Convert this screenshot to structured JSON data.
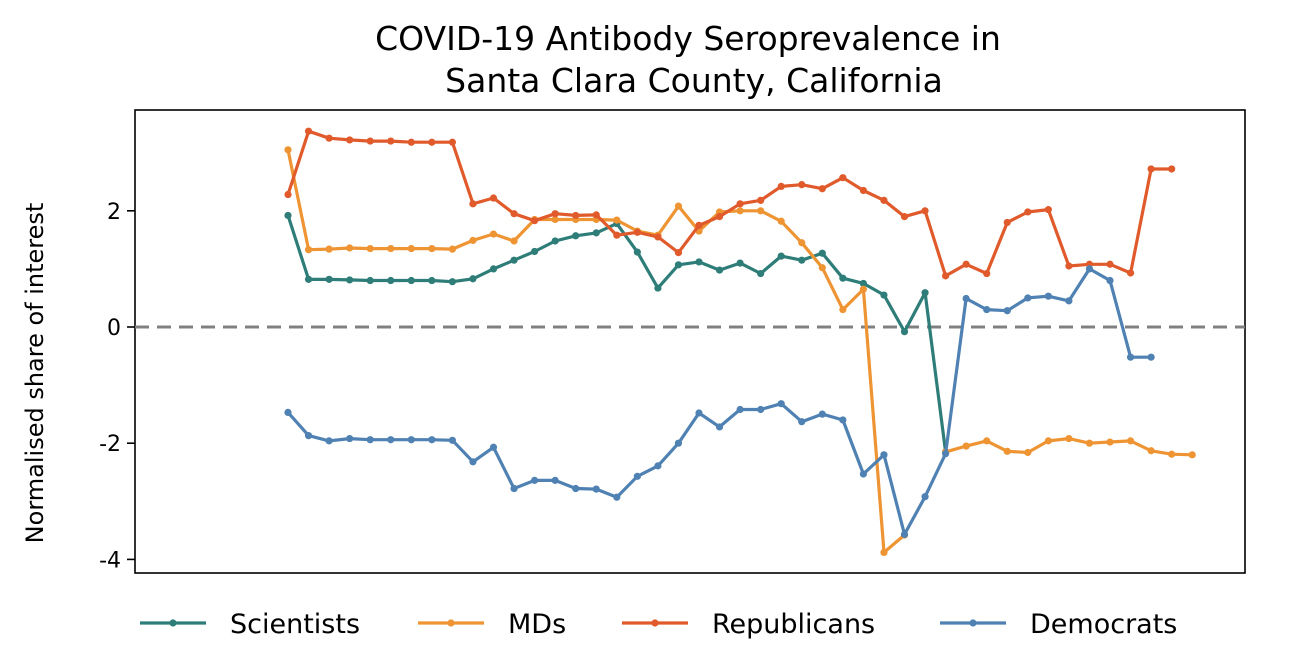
{
  "chart_data": {
    "type": "line",
    "title": [
      "COVID-19 Antibody Seroprevalence in",
      "Santa Clara County, California"
    ],
    "xlabel": "",
    "ylabel": "Normalised share of interest",
    "ylim": [
      -4.3,
      3.7
    ],
    "yticks": [
      2,
      0,
      -2,
      -4
    ],
    "ytick_labels": [
      "2",
      "0",
      "-2",
      "-4"
    ],
    "x": [
      0,
      1,
      2,
      3,
      4,
      5,
      6,
      7,
      8,
      9,
      10,
      11,
      12,
      13,
      14,
      15,
      16,
      17,
      18,
      19,
      20,
      21,
      22,
      23,
      24,
      25,
      26,
      27,
      28,
      29,
      30,
      31,
      32,
      33,
      34,
      35,
      36,
      37,
      38,
      39,
      40,
      41,
      42,
      43,
      44,
      45
    ],
    "reference_line": {
      "y": 0,
      "style": "dashed",
      "color": "#808080"
    },
    "grid": false,
    "legend_position": "bottom",
    "series": [
      {
        "name": "Scientists",
        "color": "#2e7d78",
        "values": [
          1.92,
          0.82,
          0.82,
          0.81,
          0.8,
          0.8,
          0.8,
          0.8,
          0.78,
          0.83,
          1.0,
          1.15,
          1.3,
          1.48,
          1.57,
          1.62,
          1.78,
          1.29,
          0.67,
          1.07,
          1.12,
          0.98,
          1.1,
          0.92,
          1.22,
          1.15,
          1.27,
          0.84,
          0.75,
          0.55,
          -0.08,
          0.59,
          -2.15,
          null,
          null,
          null,
          null,
          null,
          null,
          null,
          null,
          null,
          null,
          null,
          null,
          null
        ]
      },
      {
        "name": "MDs",
        "color": "#ee9433",
        "values": [
          3.05,
          1.33,
          1.34,
          1.36,
          1.35,
          1.35,
          1.35,
          1.35,
          1.34,
          1.49,
          1.6,
          1.48,
          1.85,
          1.85,
          1.85,
          1.85,
          1.84,
          1.65,
          1.58,
          2.08,
          1.65,
          1.98,
          2.0,
          2.0,
          1.82,
          1.45,
          1.02,
          0.3,
          0.65,
          -3.88,
          -3.58,
          null,
          -2.15,
          -2.05,
          -1.96,
          -2.14,
          -2.16,
          -1.96,
          -1.92,
          -2.0,
          -1.98,
          -1.96,
          -2.13,
          -2.19,
          -2.2,
          null
        ]
      },
      {
        "name": "Republicans",
        "color": "#e05a2b",
        "values": [
          2.28,
          3.37,
          3.25,
          3.22,
          3.2,
          3.2,
          3.18,
          3.18,
          3.18,
          2.12,
          2.22,
          1.95,
          1.83,
          1.95,
          1.92,
          1.93,
          1.58,
          1.63,
          1.55,
          1.28,
          1.75,
          1.9,
          2.12,
          2.18,
          2.42,
          2.45,
          2.38,
          2.57,
          2.35,
          2.18,
          1.9,
          2.0,
          0.88,
          1.08,
          0.92,
          1.8,
          1.98,
          2.02,
          1.05,
          1.08,
          1.08,
          0.93,
          2.72,
          2.72,
          null,
          null
        ]
      },
      {
        "name": "Democrats",
        "color": "#4f81b3",
        "values": [
          -1.47,
          -1.87,
          -1.96,
          -1.92,
          -1.94,
          -1.94,
          -1.94,
          -1.94,
          -1.95,
          -2.32,
          -2.07,
          -2.78,
          -2.64,
          -2.64,
          -2.78,
          -2.79,
          -2.93,
          -2.57,
          -2.39,
          -2.0,
          -1.48,
          -1.72,
          -1.42,
          -1.42,
          -1.32,
          -1.63,
          -1.5,
          -1.6,
          -2.53,
          -2.2,
          -3.57,
          -2.92,
          -2.18,
          0.49,
          0.3,
          0.28,
          0.5,
          0.53,
          0.45,
          1.0,
          0.8,
          -0.52,
          -0.52,
          null,
          null,
          null
        ]
      }
    ]
  }
}
